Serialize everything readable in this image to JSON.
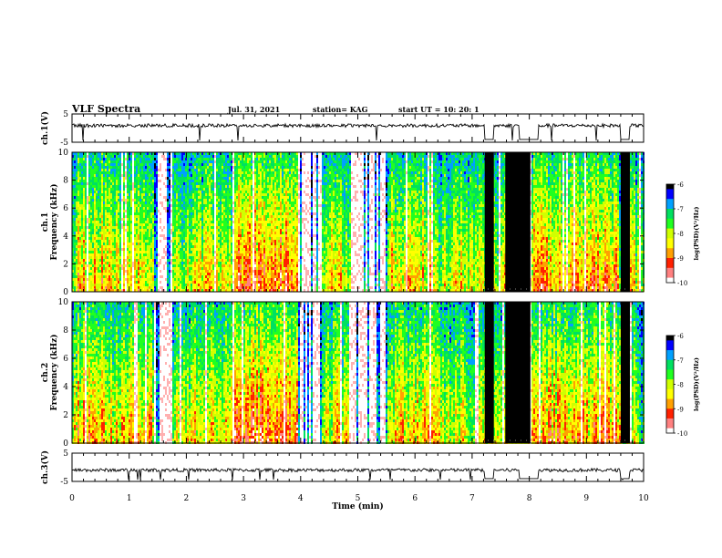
{
  "header": {
    "title": "VLF Spectra",
    "date": "Jul. 31, 2021",
    "station": "station= KAG",
    "start_ut": "start UT =  10: 20: 1"
  },
  "chart_data": {
    "type": "spectrogram",
    "x": {
      "label": "Time (min)",
      "range": [
        0,
        10
      ],
      "ticks": [
        "0",
        "1",
        "2",
        "3",
        "4",
        "5",
        "6",
        "7",
        "8",
        "9",
        "10"
      ]
    },
    "panels": [
      {
        "kind": "waveform",
        "label": "ch.1(V)",
        "ylim": [
          -5,
          5
        ],
        "yticks": [
          "5",
          "-5"
        ],
        "baseline": 0.9,
        "drops": [
          {
            "start": 7.22,
            "end": 7.38,
            "level": -4
          },
          {
            "start": 7.82,
            "end": 8.16,
            "level": -4
          },
          {
            "start": 9.6,
            "end": 9.76,
            "level": -4
          }
        ]
      },
      {
        "kind": "spectrogram",
        "label": "ch.1",
        "ylabel": "Frequency (kHz)",
        "ylim": [
          0,
          10
        ],
        "yticks": [
          "0",
          "2",
          "4",
          "6",
          "8",
          "10"
        ]
      },
      {
        "kind": "spectrogram",
        "label": "ch.2",
        "ylabel": "Frequency (kHz)",
        "ylim": [
          0,
          10
        ],
        "yticks": [
          "0",
          "2",
          "4",
          "6",
          "8",
          "10"
        ]
      },
      {
        "kind": "waveform",
        "label": "ch.3(V)",
        "ylim": [
          -5,
          5
        ],
        "yticks": [
          "5",
          "-5"
        ],
        "baseline": -1.0,
        "drops": [
          {
            "start": 7.22,
            "end": 7.38,
            "level": -4
          },
          {
            "start": 7.82,
            "end": 8.16,
            "level": -4
          },
          {
            "start": 9.6,
            "end": 9.76,
            "level": -4
          }
        ]
      }
    ],
    "colorbar": {
      "label": "log(PSD)(V²/Hz)",
      "range": [
        -10,
        -6
      ],
      "ticks": [
        "-6",
        "-7",
        "-8",
        "-9",
        "-10"
      ],
      "colors": [
        "#000000",
        "#0000ff",
        "#00a0ff",
        "#00e060",
        "#20ff20",
        "#d0ff00",
        "#ffff00",
        "#ffa000",
        "#ff2000",
        "#ff8080",
        "#ffffff"
      ]
    },
    "segments": [
      {
        "start": 0.0,
        "end": 0.06,
        "level": 0.55
      },
      {
        "start": 0.06,
        "end": 0.56,
        "level": 0.72
      },
      {
        "start": 0.56,
        "end": 0.96,
        "level": 0.6
      },
      {
        "start": 0.96,
        "end": 1.42,
        "level": 0.68
      },
      {
        "start": 1.42,
        "end": 1.75,
        "level": 0.12
      },
      {
        "start": 1.75,
        "end": 2.0,
        "level": 0.55
      },
      {
        "start": 2.0,
        "end": 2.8,
        "level": 0.62
      },
      {
        "start": 2.8,
        "end": 3.95,
        "level": 0.82
      },
      {
        "start": 3.95,
        "end": 4.35,
        "level": 0.15
      },
      {
        "start": 4.35,
        "end": 4.85,
        "level": 0.6
      },
      {
        "start": 4.85,
        "end": 5.5,
        "level": 0.1
      },
      {
        "start": 5.5,
        "end": 6.3,
        "level": 0.65
      },
      {
        "start": 6.3,
        "end": 7.2,
        "level": 0.58
      },
      {
        "start": 7.2,
        "end": 7.55,
        "level": 0.6
      },
      {
        "start": 7.55,
        "end": 8.05,
        "level": 0.62
      },
      {
        "start": 8.05,
        "end": 9.55,
        "level": 0.72
      },
      {
        "start": 9.55,
        "end": 9.9,
        "level": 0.55
      }
    ],
    "black_bands": [
      {
        "start": 7.22,
        "end": 7.38
      },
      {
        "start": 7.58,
        "end": 8.02
      },
      {
        "start": 9.6,
        "end": 9.76
      }
    ]
  }
}
